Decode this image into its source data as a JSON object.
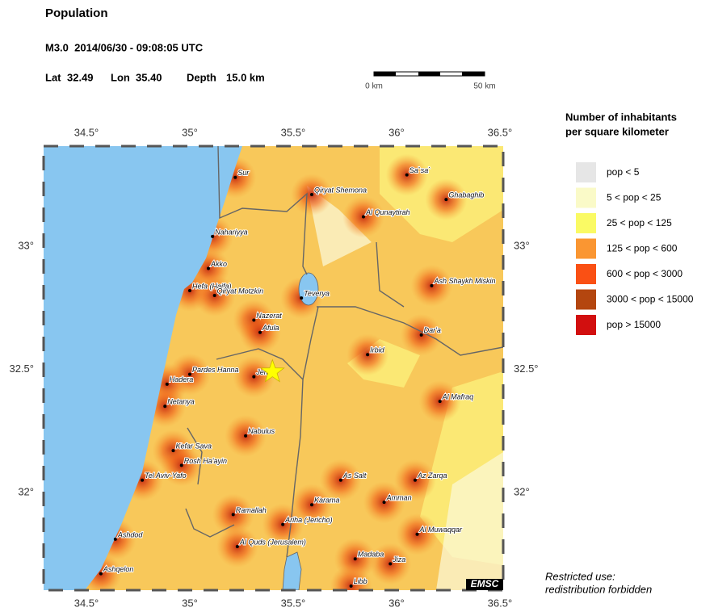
{
  "header": {
    "title": "Population",
    "event": "M3.0  2014/06/30 - 09:08:05 UTC",
    "lat": {
      "name": "Lat",
      "value": 32.49
    },
    "lon": {
      "name": "Lon",
      "value": 35.4,
      "label": "35.40"
    },
    "depth": {
      "name": "Depth",
      "value": 15,
      "label": "15.0 km"
    }
  },
  "scale_bar": {
    "start": "0 km",
    "end": "50 km"
  },
  "map": {
    "lonlim": [
      34.293,
      36.516
    ],
    "latlim": [
      31.603,
      33.407
    ],
    "lonticks": [
      {
        "value": 34.5,
        "label": "34.5°"
      },
      {
        "value": 35,
        "label": "35°"
      },
      {
        "value": 35.5,
        "label": "35.5°"
      },
      {
        "value": 36,
        "label": "36°"
      },
      {
        "value": 36.5,
        "label": "36.5°"
      }
    ],
    "latticks": [
      {
        "value": 33,
        "label": "33°"
      },
      {
        "value": 32.5,
        "label": "32.5°"
      },
      {
        "value": 32,
        "label": "32°"
      }
    ],
    "cities": [
      {
        "name": "Sur",
        "lon": 35.22,
        "lat": 33.28
      },
      {
        "name": "Qiryat Shemona",
        "lon": 35.59,
        "lat": 33.21
      },
      {
        "name": "Sa`sa`",
        "lon": 36.05,
        "lat": 33.29
      },
      {
        "name": "Ghabaghib",
        "lon": 36.24,
        "lat": 33.19
      },
      {
        "name": "Al Qunaytirah",
        "lon": 35.84,
        "lat": 33.12
      },
      {
        "name": "Nahariyya",
        "lon": 35.11,
        "lat": 33.04
      },
      {
        "name": "Akko",
        "lon": 35.09,
        "lat": 32.91
      },
      {
        "name": "Hefa (Haifa)",
        "lon": 35.0,
        "lat": 32.82
      },
      {
        "name": "Qiryat Motzkin",
        "lon": 35.12,
        "lat": 32.8
      },
      {
        "name": "Teverya",
        "lon": 35.54,
        "lat": 32.79
      },
      {
        "name": "Ash Shaykh Miskin",
        "lon": 36.17,
        "lat": 32.84
      },
      {
        "name": "Nazerat",
        "lon": 35.31,
        "lat": 32.7
      },
      {
        "name": "Afula",
        "lon": 35.34,
        "lat": 32.65
      },
      {
        "name": "Dar'a",
        "lon": 36.12,
        "lat": 32.64
      },
      {
        "name": "Irbid",
        "lon": 35.86,
        "lat": 32.56
      },
      {
        "name": "Pardes Hanna",
        "lon": 35.0,
        "lat": 32.48
      },
      {
        "name": "Hadera",
        "lon": 34.89,
        "lat": 32.44
      },
      {
        "name": "Jenin",
        "lon": 35.31,
        "lat": 32.47
      },
      {
        "name": "Netanya",
        "lon": 34.88,
        "lat": 32.35
      },
      {
        "name": "Al Mafraq",
        "lon": 36.21,
        "lat": 32.37
      },
      {
        "name": "Nabulus",
        "lon": 35.27,
        "lat": 32.23
      },
      {
        "name": "Kefar Sava",
        "lon": 34.92,
        "lat": 32.17
      },
      {
        "name": "Rosh Ha'ayin",
        "lon": 34.96,
        "lat": 32.11
      },
      {
        "name": "Tel Aviv-Yafo",
        "lon": 34.77,
        "lat": 32.05
      },
      {
        "name": "As Salt",
        "lon": 35.73,
        "lat": 32.05
      },
      {
        "name": "Az Zarqa",
        "lon": 36.09,
        "lat": 32.05
      },
      {
        "name": "Karama",
        "lon": 35.59,
        "lat": 31.95
      },
      {
        "name": "Amman",
        "lon": 35.94,
        "lat": 31.96
      },
      {
        "name": "Ramallah",
        "lon": 35.21,
        "lat": 31.91
      },
      {
        "name": "Ariha (Jericho)",
        "lon": 35.45,
        "lat": 31.87
      },
      {
        "name": "Ashdod",
        "lon": 34.64,
        "lat": 31.81
      },
      {
        "name": "Al Quds (Jerusalem)",
        "lon": 35.23,
        "lat": 31.78
      },
      {
        "name": "Al Muwaqqar",
        "lon": 36.1,
        "lat": 31.83
      },
      {
        "name": "Madaba",
        "lon": 35.8,
        "lat": 31.73
      },
      {
        "name": "Jiza",
        "lon": 35.97,
        "lat": 31.71
      },
      {
        "name": "Ashqelon",
        "lon": 34.57,
        "lat": 31.67
      },
      {
        "name": "Libb",
        "lon": 35.78,
        "lat": 31.62
      }
    ]
  },
  "legend": {
    "title": [
      "Number of inhabitants",
      "per square kilometer"
    ],
    "items": [
      {
        "label": "pop < 5",
        "color": "#e6e6e6"
      },
      {
        "label": "5 < pop < 25",
        "color": "#fafac8"
      },
      {
        "label": "25 < pop < 125",
        "color": "#fafa64"
      },
      {
        "label": "125 < pop < 600",
        "color": "#fa9632"
      },
      {
        "label": "600 < pop < 3000",
        "color": "#fa5014"
      },
      {
        "label": "3000 < pop < 15000",
        "color": "#b4460f"
      },
      {
        "label": "pop > 15000",
        "color": "#d20f0f"
      }
    ]
  },
  "logo": "EMSC",
  "footer": [
    "Restricted use:",
    "redistribution forbidden"
  ]
}
